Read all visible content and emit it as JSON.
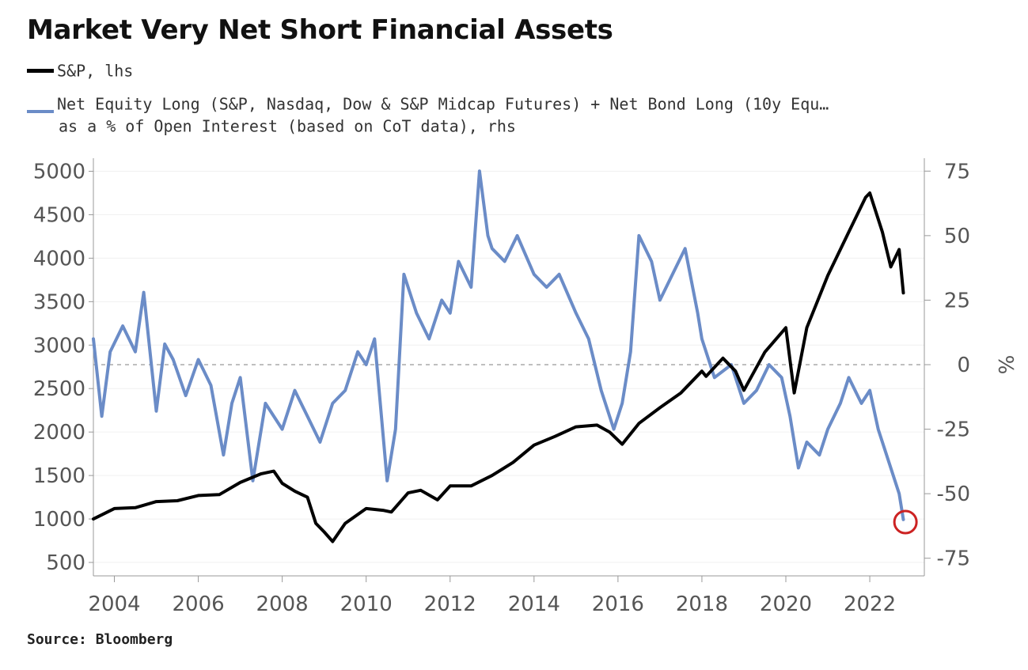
{
  "chart_data": {
    "type": "line",
    "title": "Market Very Net Short Financial Assets",
    "source": "Source: Bloomberg",
    "legend": [
      {
        "label": "S&P, lhs",
        "color": "#000000"
      },
      {
        "label_line1": "Net Equity Long (S&P, Nasdaq, Dow & S&P Midcap Futures) + Net Bond Long (10y Equ…",
        "label_line2": "as a % of Open Interest (based on CoT data), rhs",
        "color": "#6b8cc7"
      }
    ],
    "x_ticks": [
      "2004",
      "2006",
      "2008",
      "2010",
      "2012",
      "2014",
      "2016",
      "2018",
      "2020",
      "2022"
    ],
    "xlim": [
      2003.5,
      2023.3
    ],
    "y_left": {
      "ticks": [
        "500",
        "1000",
        "1500",
        "2000",
        "2500",
        "3000",
        "3500",
        "4000",
        "4500",
        "5000"
      ],
      "ylim": [
        400,
        5150
      ]
    },
    "y_right": {
      "ticks": [
        "75",
        "50",
        "25",
        "0",
        "-25",
        "-50",
        "-75"
      ],
      "label": "%",
      "ylim": [
        -80,
        80
      ]
    },
    "zero_line": "dashed",
    "series": [
      {
        "name": "S&P, lhs",
        "axis": "left",
        "color": "#000000",
        "x": [
          2003.5,
          2004.0,
          2004.5,
          2005.0,
          2005.5,
          2006.0,
          2006.5,
          2007.0,
          2007.5,
          2007.8,
          2008.0,
          2008.3,
          2008.6,
          2008.8,
          2009.0,
          2009.2,
          2009.5,
          2010.0,
          2010.4,
          2010.6,
          2011.0,
          2011.3,
          2011.7,
          2012.0,
          2012.5,
          2013.0,
          2013.5,
          2014.0,
          2014.5,
          2015.0,
          2015.5,
          2015.8,
          2016.1,
          2016.5,
          2017.0,
          2017.5,
          2018.0,
          2018.1,
          2018.5,
          2018.8,
          2019.0,
          2019.5,
          2020.0,
          2020.2,
          2020.5,
          2021.0,
          2021.5,
          2021.9,
          2022.0,
          2022.3,
          2022.5,
          2022.7,
          2022.8
        ],
        "y": [
          1000,
          1120,
          1130,
          1200,
          1210,
          1270,
          1280,
          1420,
          1520,
          1550,
          1410,
          1320,
          1250,
          950,
          850,
          740,
          950,
          1120,
          1100,
          1080,
          1300,
          1330,
          1220,
          1380,
          1380,
          1500,
          1650,
          1850,
          1950,
          2060,
          2080,
          2000,
          1860,
          2100,
          2280,
          2450,
          2700,
          2640,
          2850,
          2700,
          2480,
          2920,
          3200,
          2450,
          3200,
          3800,
          4300,
          4700,
          4750,
          4300,
          3900,
          4100,
          3600
        ]
      },
      {
        "name": "Net Equity Long (S&P, Nasdaq, Dow & S&P Midcap Futures) + Net Bond Long (10y Equ… as a % of Open Interest (based on CoT data), rhs",
        "axis": "right",
        "color": "#6b8cc7",
        "x": [
          2003.5,
          2003.7,
          2003.9,
          2004.2,
          2004.5,
          2004.7,
          2005.0,
          2005.2,
          2005.4,
          2005.7,
          2006.0,
          2006.3,
          2006.6,
          2006.8,
          2007.0,
          2007.3,
          2007.6,
          2008.0,
          2008.3,
          2008.6,
          2008.9,
          2009.2,
          2009.5,
          2009.8,
          2010.0,
          2010.2,
          2010.5,
          2010.7,
          2010.9,
          2011.2,
          2011.5,
          2011.8,
          2012.0,
          2012.2,
          2012.5,
          2012.7,
          2012.9,
          2013.0,
          2013.3,
          2013.6,
          2014.0,
          2014.3,
          2014.6,
          2015.0,
          2015.3,
          2015.6,
          2015.9,
          2016.1,
          2016.3,
          2016.5,
          2016.8,
          2017.0,
          2017.3,
          2017.6,
          2017.9,
          2018.0,
          2018.3,
          2018.7,
          2019.0,
          2019.3,
          2019.6,
          2019.9,
          2020.1,
          2020.3,
          2020.5,
          2020.8,
          2021.0,
          2021.3,
          2021.5,
          2021.8,
          2022.0,
          2022.2,
          2022.5,
          2022.7,
          2022.8
        ],
        "y": [
          10,
          -20,
          5,
          15,
          5,
          28,
          -18,
          8,
          2,
          -12,
          2,
          -8,
          -35,
          -15,
          -5,
          -45,
          -15,
          -25,
          -10,
          -20,
          -30,
          -15,
          -10,
          5,
          0,
          10,
          -45,
          -25,
          35,
          20,
          10,
          25,
          20,
          40,
          30,
          75,
          50,
          45,
          40,
          50,
          35,
          30,
          35,
          20,
          10,
          -10,
          -25,
          -15,
          5,
          50,
          40,
          25,
          35,
          45,
          20,
          10,
          -5,
          0,
          -15,
          -10,
          0,
          -5,
          -20,
          -40,
          -30,
          -35,
          -25,
          -15,
          -5,
          -15,
          -10,
          -25,
          -40,
          -50,
          -60
        ]
      }
    ],
    "annotation": {
      "type": "circle",
      "color": "#cc2222",
      "x": 2022.85,
      "y_right": -61
    }
  }
}
